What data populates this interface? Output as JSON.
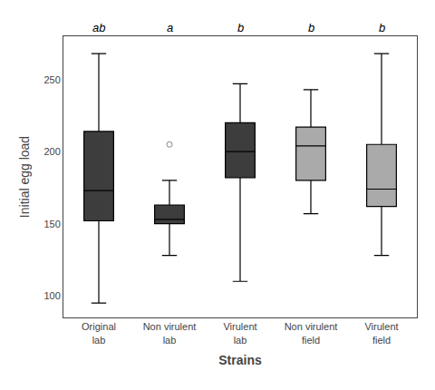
{
  "chart_data": {
    "type": "box",
    "categories": [
      "Original\nlab",
      "Non virulent\nlab",
      "Virulent\nlab",
      "Non virulent\nfield",
      "Virulent\nfield"
    ],
    "annotations": [
      "ab",
      "a",
      "b",
      "b",
      "b"
    ],
    "colors": [
      "#3d3d3d",
      "#3d3d3d",
      "#3d3d3d",
      "#aaaaaa",
      "#aaaaaa"
    ],
    "median": [
      173,
      153,
      200,
      204,
      174
    ],
    "q1": [
      152,
      150,
      182,
      180,
      162
    ],
    "q3": [
      214,
      163,
      220,
      217,
      205
    ],
    "whisker_low": [
      95,
      128,
      110,
      157,
      128
    ],
    "whisker_high": [
      268,
      180,
      247,
      243,
      268
    ],
    "outliers": [
      [],
      [
        205
      ],
      [],
      [],
      []
    ],
    "ylim": [
      85,
      280
    ],
    "yticks": [
      100,
      150,
      200,
      250
    ],
    "ylabel": "Initial egg load",
    "xlabel": "Strains",
    "grid": false
  }
}
